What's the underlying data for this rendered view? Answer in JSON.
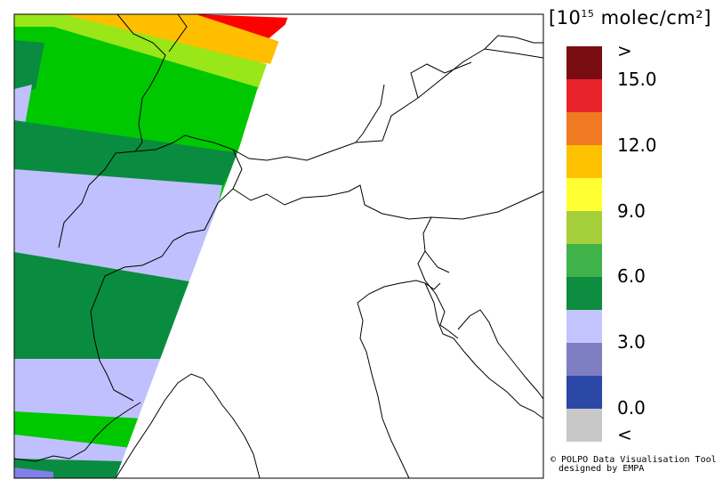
{
  "legend": {
    "unit_label_pre": "[10",
    "unit_label_exp": "15",
    "unit_label_post": " molec/cm²]",
    "swatches": [
      "#7a0d12",
      "#e8242a",
      "#f07a22",
      "#ffc200",
      "#ffff33",
      "#a5cf3a",
      "#3fb34a",
      "#0e8c3f",
      "#c4c4ff",
      "#7d7fc2",
      "#2c48a6",
      "#c8c8c8"
    ],
    "ticks": [
      ">",
      "15.0",
      "12.0",
      "9.0",
      "6.0",
      "3.0",
      "0.0",
      "<"
    ]
  },
  "credit": {
    "line1": "© POLPO Data Visualisation Tool",
    "line2": "designed by EMPA"
  },
  "map": {
    "band_colors": {
      "red": "#ff0000",
      "orange": "#ffbf00",
      "yellow_green": "#99e619",
      "green": "#00c800",
      "dark_green": "#0a8c40",
      "lavender": "#c0c0ff",
      "blue": "#8080e8"
    }
  }
}
